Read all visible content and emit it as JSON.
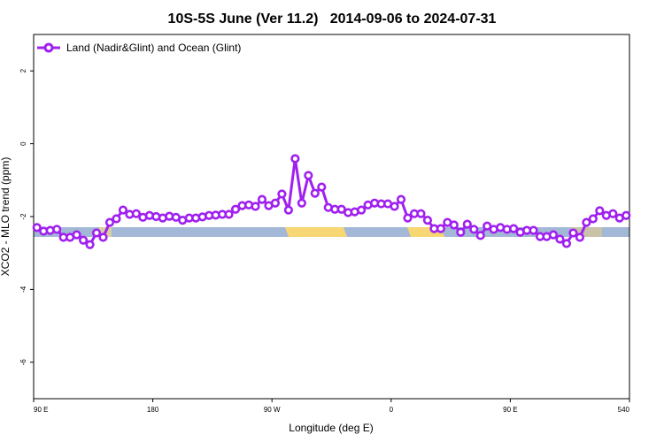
{
  "chart_data": {
    "type": "line",
    "title": "10S-5S June (Ver 11.2)   2014-09-06 to 2024-07-31",
    "x_label": "Longitude (deg E)",
    "y_label": "XCO2 - MLO trend (ppm)",
    "xlim": [
      90,
      540
    ],
    "ylim": [
      -7,
      3
    ],
    "xticks": [
      {
        "value": 90,
        "label": "90 E"
      },
      180,
      {
        "value": 270,
        "label": "90 W"
      },
      {
        "value": 360,
        "label": "0"
      },
      {
        "value": 450,
        "label": "90 E"
      },
      540
    ],
    "yticks": [
      2,
      0,
      -2,
      -4,
      -6
    ],
    "legend": "top-left",
    "x": [
      92.5,
      97.5,
      102.5,
      107.5,
      112.5,
      117.5,
      122.5,
      127.5,
      132.5,
      137.5,
      142.5,
      147.5,
      152.5,
      157.5,
      162.5,
      167.5,
      172.5,
      177.5,
      182.5,
      187.5,
      192.5,
      197.5,
      202.5,
      207.5,
      212.5,
      217.5,
      222.5,
      227.5,
      232.5,
      237.5,
      242.5,
      247.5,
      252.5,
      257.5,
      262.5,
      267.5,
      272.5,
      277.5,
      282.5,
      287.5,
      292.5,
      297.5,
      302.5,
      307.5,
      312.5,
      317.5,
      322.5,
      327.5,
      332.5,
      337.5,
      342.5,
      347.5,
      352.5,
      357.5,
      362.5,
      367.5,
      372.5,
      377.5,
      382.5,
      387.5,
      392.5,
      397.5,
      402.5,
      407.5,
      412.5,
      417.5,
      422.5,
      427.5,
      432.5,
      437.5,
      442.5,
      447.5,
      452.5,
      457.5,
      462.5,
      467.5,
      472.5,
      477.5,
      482.5,
      487.5,
      492.5,
      497.5,
      502.5,
      507.5,
      512.5,
      517.5,
      522.5,
      527.5,
      532.5,
      537.5
    ],
    "series": [
      {
        "name": "Land (Nadir&Glint) and Ocean (Glint)",
        "color": "#a020f0",
        "values": [
          -2.3,
          -2.4,
          -2.38,
          -2.35,
          -2.57,
          -2.57,
          -2.5,
          -2.65,
          -2.77,
          -2.45,
          -2.57,
          -2.16,
          -2.06,
          -1.82,
          -1.94,
          -1.92,
          -2.02,
          -1.97,
          -2.0,
          -2.04,
          -1.99,
          -2.02,
          -2.1,
          -2.04,
          -2.04,
          -2.01,
          -1.97,
          -1.96,
          -1.94,
          -1.94,
          -1.8,
          -1.7,
          -1.68,
          -1.72,
          -1.53,
          -1.7,
          -1.63,
          -1.38,
          -1.82,
          -0.41,
          -1.63,
          -0.87,
          -1.36,
          -1.19,
          -1.75,
          -1.8,
          -1.8,
          -1.89,
          -1.87,
          -1.82,
          -1.68,
          -1.63,
          -1.65,
          -1.65,
          -1.72,
          -1.53,
          -2.04,
          -1.92,
          -1.92,
          -2.1,
          -2.33,
          -2.33,
          -2.16,
          -2.23,
          -2.43,
          -2.21,
          -2.35,
          -2.52,
          -2.26,
          -2.35,
          -2.3,
          -2.35,
          -2.33,
          -2.43,
          -2.38,
          -2.38,
          -2.55,
          -2.55,
          -2.5,
          -2.62,
          -2.74,
          -2.45,
          -2.57,
          -2.16,
          -2.06,
          -1.84,
          -1.97,
          -1.92,
          -2.04,
          -1.97
        ]
      }
    ]
  }
}
